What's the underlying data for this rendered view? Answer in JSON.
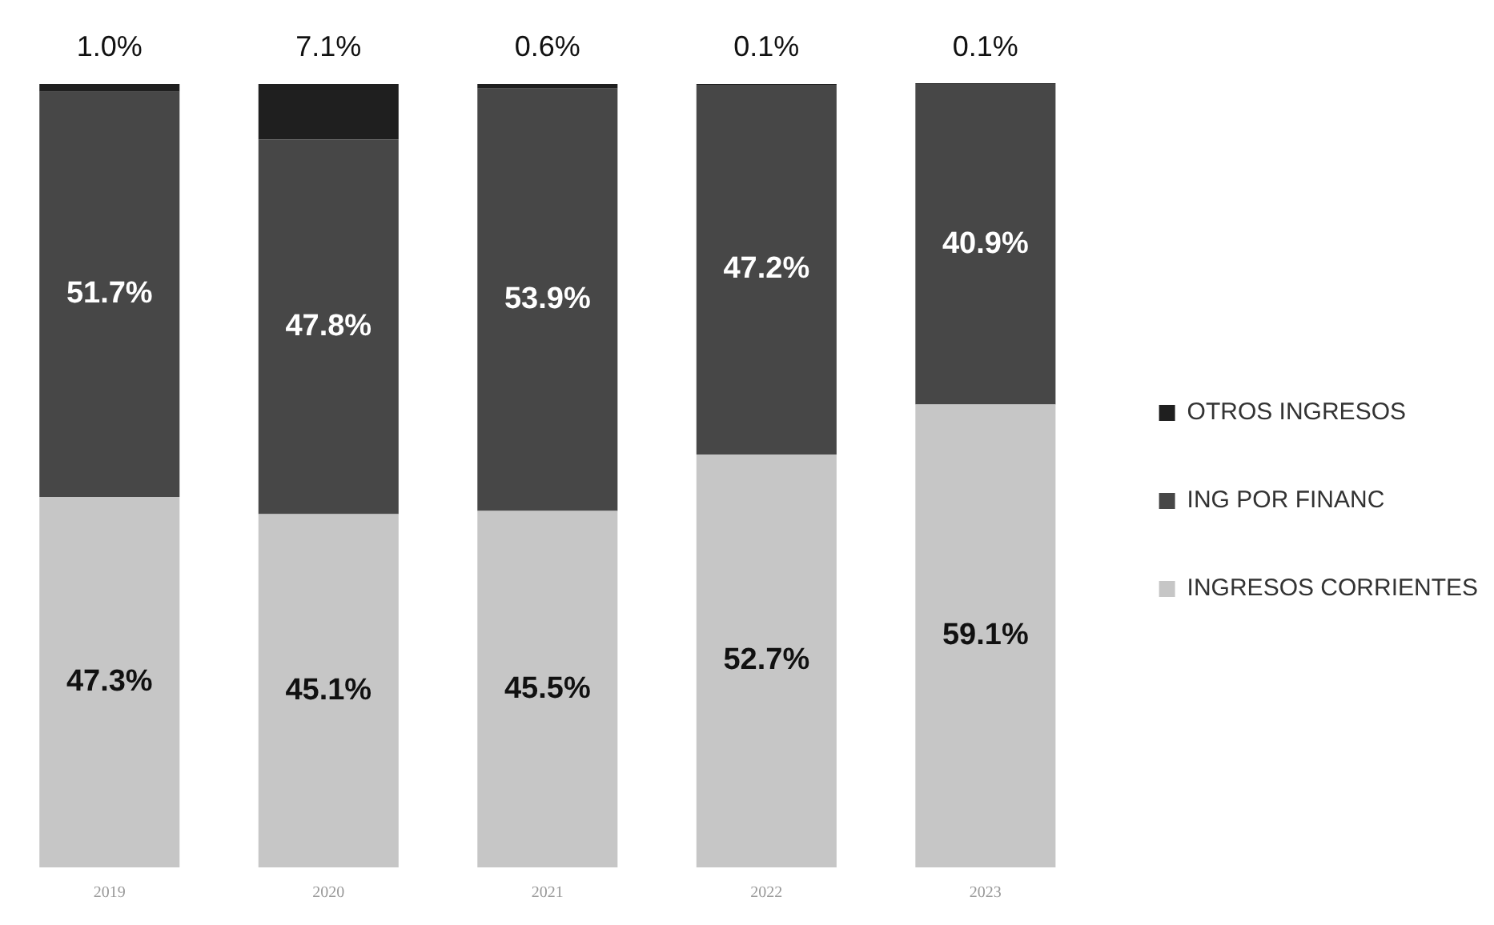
{
  "chart_data": {
    "type": "bar",
    "stacked": true,
    "categories": [
      "2019",
      "2020",
      "2021",
      "2022",
      "2023"
    ],
    "series": [
      {
        "name": "INGRESOS CORRIENTES",
        "color": "#c6c6c6",
        "values": [
          47.3,
          45.1,
          45.5,
          52.7,
          59.1
        ],
        "value_labels": [
          "47.3%",
          "45.1%",
          "45.5%",
          "52.7%",
          "59.1%"
        ]
      },
      {
        "name": "ING POR FINANC",
        "color": "#474747",
        "values": [
          51.7,
          47.8,
          53.9,
          47.2,
          40.9
        ],
        "value_labels": [
          "51.7%",
          "47.8%",
          "53.9%",
          "47.2%",
          "40.9%"
        ]
      },
      {
        "name": "OTROS INGRESOS",
        "color": "#1f1f1f",
        "values": [
          1.0,
          7.1,
          0.6,
          0.1,
          0.1
        ],
        "value_labels": [
          "1.0%",
          "7.1%",
          "0.6%",
          "0.1%",
          "0.1%"
        ]
      }
    ],
    "legend": "right",
    "grid": false
  }
}
